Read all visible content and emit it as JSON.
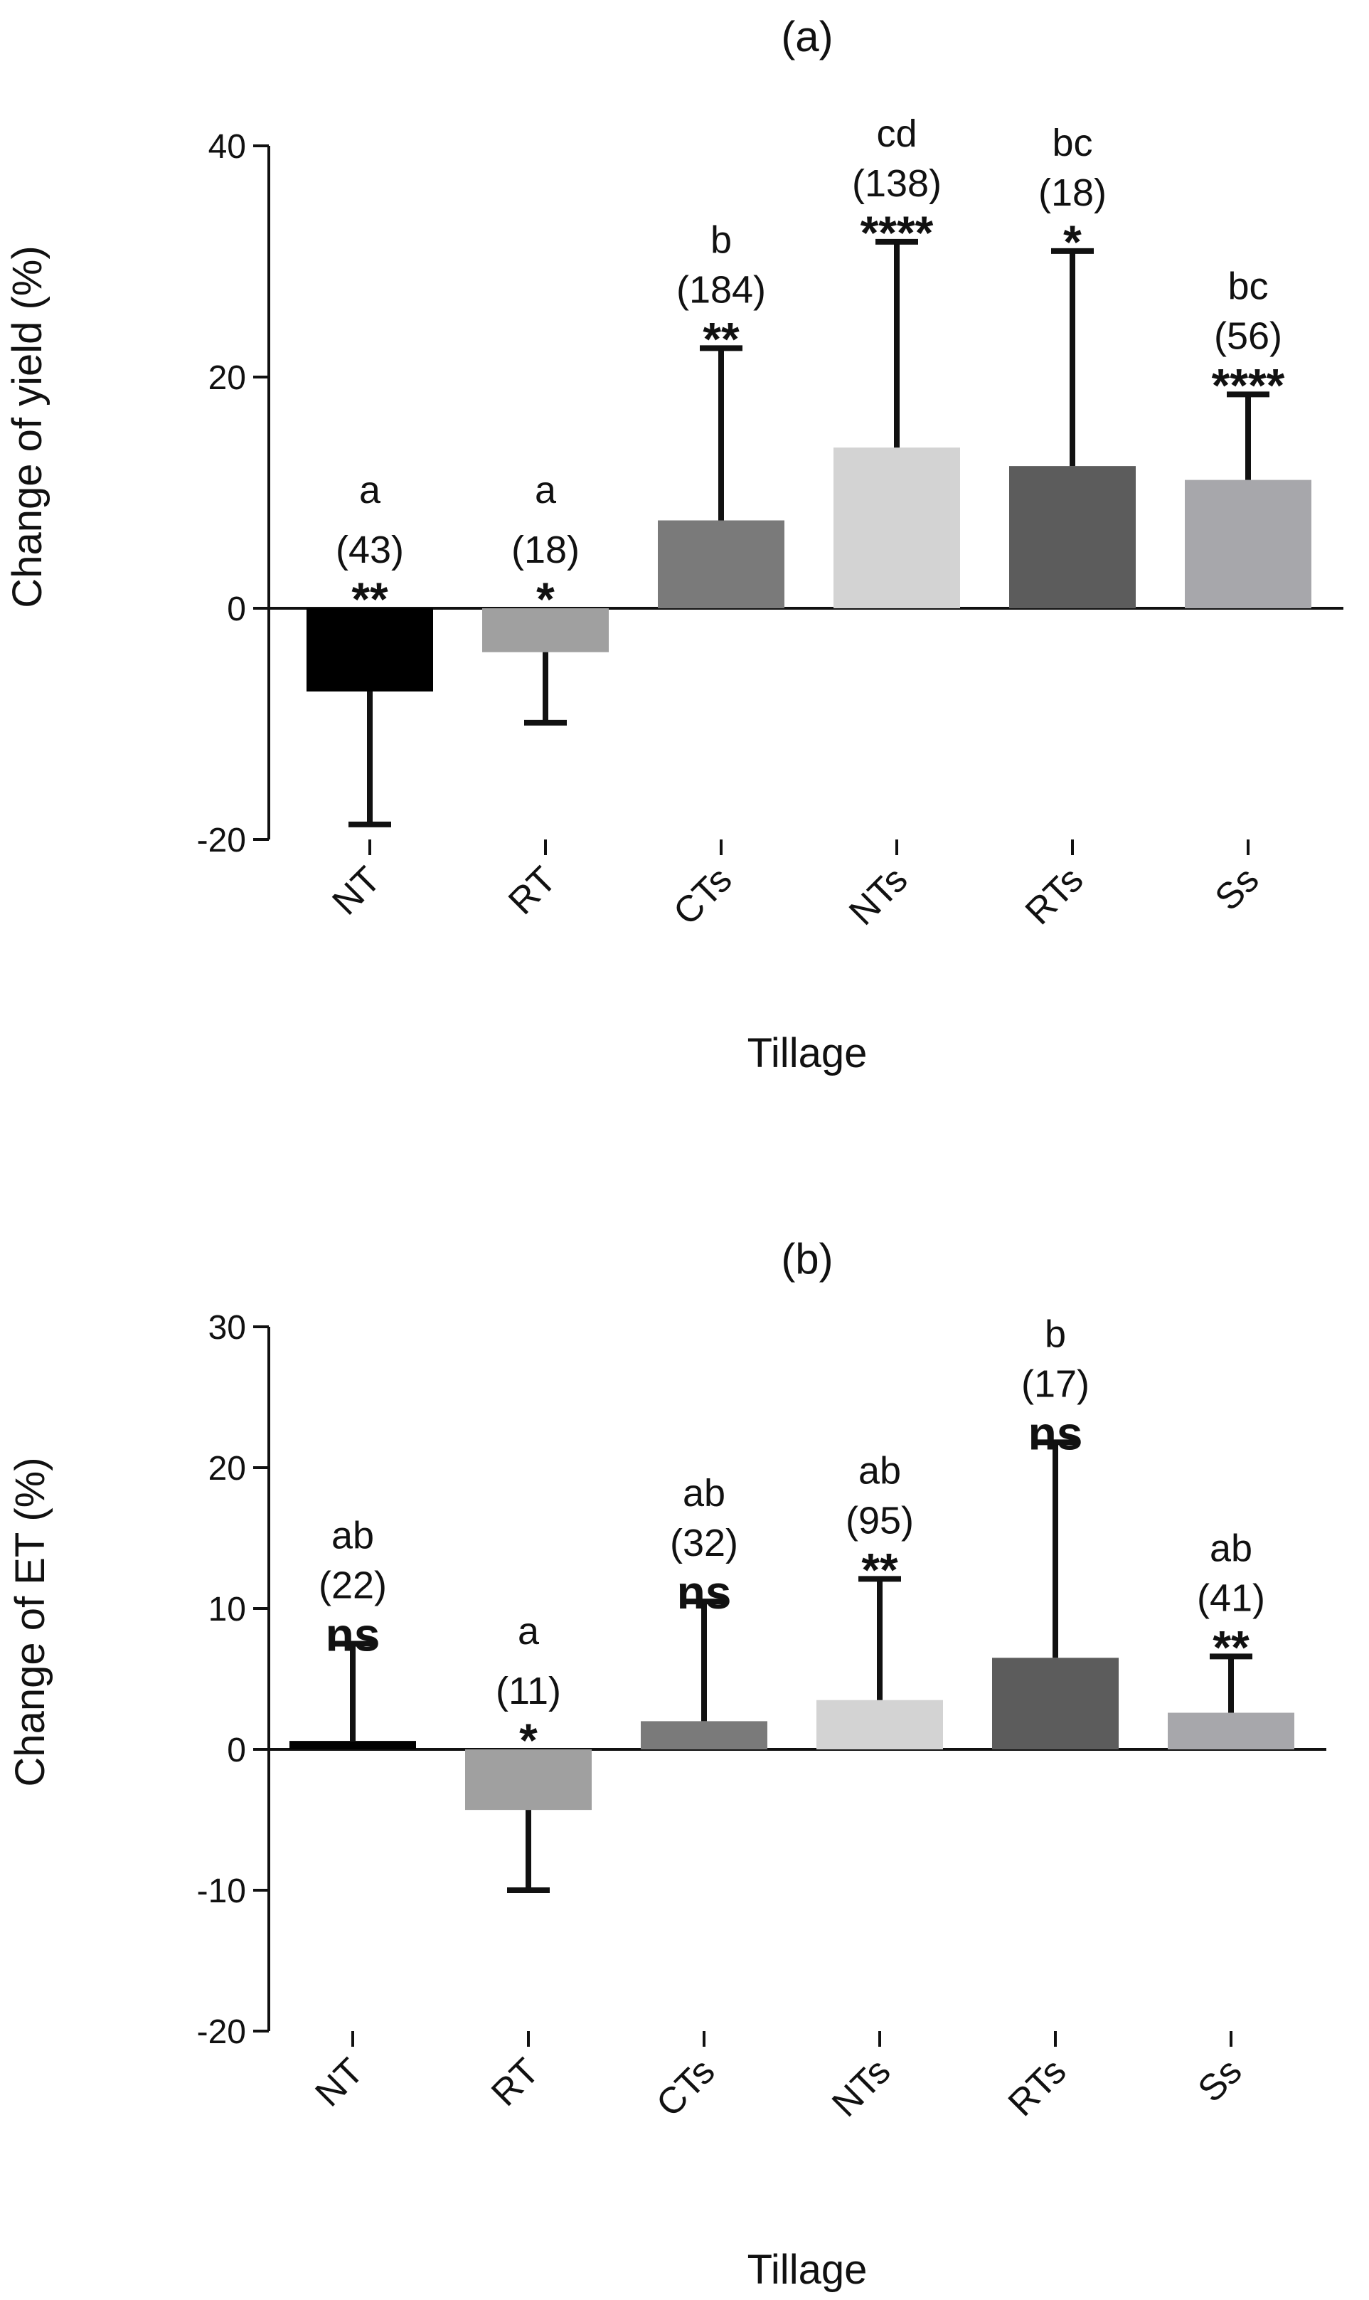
{
  "chart_data": [
    {
      "type": "bar",
      "title": "(a)",
      "xlabel": "Tillage",
      "ylabel": "Change of yield (%)",
      "ylim": [
        -20,
        40
      ],
      "yticks": [
        -20,
        0,
        20,
        40
      ],
      "categories": [
        "NT",
        "RT",
        "CTs",
        "NTs",
        "RTs",
        "Ss"
      ],
      "values": [
        -7.2,
        -3.8,
        7.6,
        13.9,
        12.3,
        11.1
      ],
      "error_upper": [
        -18.7,
        -9.9,
        22.5,
        31.7,
        30.9,
        18.5
      ],
      "colors": [
        "#000000",
        "#a0a0a0",
        "#7a7a7a",
        "#d3d3d3",
        "#5c5c5c",
        "#a7a7ab"
      ],
      "letters": [
        "a",
        "a",
        "b",
        "cd",
        "bc",
        "bc"
      ],
      "counts": [
        "(43)",
        "(18)",
        "(184)",
        "(138)",
        "(18)",
        "(56)"
      ],
      "significance": [
        "**",
        "*",
        "**",
        "****",
        "*",
        "****"
      ]
    },
    {
      "type": "bar",
      "title": "(b)",
      "xlabel": "Tillage",
      "ylabel": "Change of ET (%)",
      "ylim": [
        -20,
        30
      ],
      "yticks": [
        -20,
        -10,
        0,
        10,
        20,
        30
      ],
      "categories": [
        "NT",
        "RT",
        "CTs",
        "NTs",
        "RTs",
        "Ss"
      ],
      "values": [
        0.6,
        -4.3,
        2.0,
        3.5,
        6.5,
        2.6
      ],
      "error_upper": [
        7.5,
        -10.0,
        10.5,
        12.1,
        21.8,
        6.6
      ],
      "colors": [
        "#000000",
        "#a0a0a0",
        "#7a7a7a",
        "#d3d3d3",
        "#5c5c5c",
        "#a7a7ab"
      ],
      "letters": [
        "ab",
        "a",
        "ab",
        "ab",
        "b",
        "ab"
      ],
      "counts": [
        "(22)",
        "(11)",
        "(32)",
        "(95)",
        "(17)",
        "(41)"
      ],
      "significance": [
        "ns",
        "*",
        "ns",
        "**",
        "ns",
        "**"
      ]
    }
  ]
}
